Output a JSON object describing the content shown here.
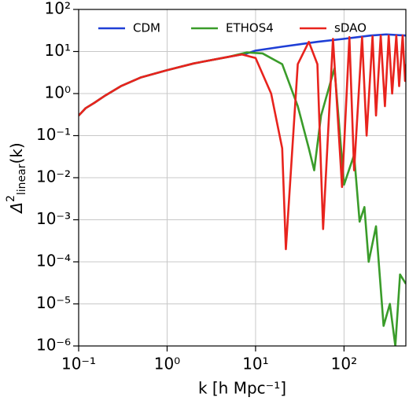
{
  "chart_data": {
    "type": "line",
    "x_label": "k [h Mpc⁻¹]",
    "y_label": {
      "symbol": "Δ",
      "sup": "2",
      "sub": "linear",
      "arg": "(k)"
    },
    "log_x": true,
    "log_y": true,
    "grid": true,
    "legend": "upper center",
    "xlim": [
      0.1,
      500
    ],
    "ylim": [
      1e-06,
      100
    ],
    "xticks": [
      {
        "value": 0.1,
        "label": "10⁻¹"
      },
      {
        "value": 1,
        "label": "10⁰"
      },
      {
        "value": 10,
        "label": "10¹"
      },
      {
        "value": 100,
        "label": "10²"
      }
    ],
    "yticks": [
      {
        "value": 100,
        "label": "10²"
      },
      {
        "value": 10,
        "label": "10¹"
      },
      {
        "value": 1,
        "label": "10⁰"
      },
      {
        "value": 0.1,
        "label": "10⁻¹"
      },
      {
        "value": 0.01,
        "label": "10⁻²"
      },
      {
        "value": 0.001,
        "label": "10⁻³"
      },
      {
        "value": 0.0001,
        "label": "10⁻⁴"
      },
      {
        "value": 1e-05,
        "label": "10⁻⁵"
      },
      {
        "value": 1e-06,
        "label": "10⁻⁶"
      }
    ],
    "series": [
      {
        "name": "CDM",
        "color": "#1f3fd6",
        "x": [
          0.1,
          0.12,
          0.15,
          0.2,
          0.3,
          0.5,
          1,
          2,
          5,
          8,
          10,
          20,
          50,
          100,
          200,
          300,
          500
        ],
        "values": [
          0.3,
          0.45,
          0.6,
          0.9,
          1.5,
          2.4,
          3.6,
          5.2,
          7.5,
          9,
          10.5,
          13,
          17,
          20,
          24,
          25.5,
          24
        ]
      },
      {
        "name": "ETHOS4",
        "color": "#3a9c2a",
        "x": [
          0.1,
          0.12,
          0.15,
          0.2,
          0.3,
          0.5,
          1,
          2,
          5,
          8,
          12,
          20,
          30,
          40,
          46,
          55,
          78,
          100,
          130,
          150,
          170,
          190,
          230,
          280,
          330,
          380,
          430,
          500
        ],
        "values": [
          0.3,
          0.45,
          0.6,
          0.9,
          1.5,
          2.4,
          3.6,
          5.2,
          7.5,
          9.5,
          9,
          5,
          0.5,
          0.05,
          0.015,
          0.3,
          4,
          0.0068,
          0.035,
          0.0009,
          0.002,
          0.0001,
          0.0007,
          3e-06,
          1e-05,
          1e-06,
          5e-05,
          3e-05
        ]
      },
      {
        "name": "sDAO",
        "color": "#e8231d",
        "x": [
          0.1,
          0.12,
          0.15,
          0.2,
          0.3,
          0.5,
          1,
          2,
          5,
          7,
          10,
          15,
          20,
          22,
          30,
          40,
          50,
          58,
          75,
          95,
          115,
          130,
          160,
          180,
          210,
          230,
          260,
          290,
          320,
          350,
          390,
          420,
          460,
          490,
          500
        ],
        "values": [
          0.3,
          0.45,
          0.6,
          0.9,
          1.5,
          2.4,
          3.6,
          5.2,
          7.5,
          8.5,
          7,
          1,
          0.05,
          0.0002,
          5,
          17,
          5,
          0.0006,
          20,
          0.006,
          22,
          0.015,
          22,
          0.1,
          23,
          0.3,
          24,
          0.5,
          24,
          1,
          24,
          1.5,
          24,
          2,
          5
        ]
      }
    ]
  }
}
